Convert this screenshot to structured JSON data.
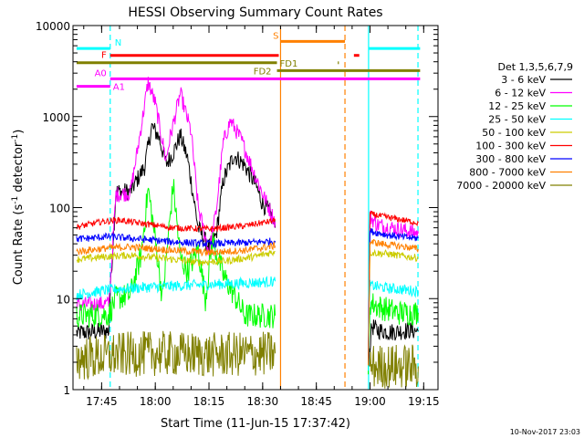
{
  "chart_data": {
    "type": "line",
    "title": "HESSI Observing Summary Count Rates",
    "xlabel": "Start Time (11-Jun-15 17:37:42)",
    "ylabel_main": "Count Rate (s",
    "ylabel_sup1": "-1",
    "ylabel_mid": " detector",
    "ylabel_sup2": "-1",
    "ylabel_end": ")",
    "yscale": "log",
    "xlim": [
      "17:37:42",
      "19:19"
    ],
    "ylim": [
      1,
      10000
    ],
    "x_ticks": [
      "17:45",
      "18:00",
      "18:15",
      "18:30",
      "18:45",
      "19:00",
      "19:15"
    ],
    "y_ticks": [
      "1",
      "10",
      "100",
      "1000",
      "10000"
    ],
    "legend_title": "Det 1,3,5,6,7,9",
    "legend_position": "right",
    "timestamp": "10-Nov-2017 23:03",
    "series": [
      {
        "name": "3 - 6 keV",
        "color": "#000000",
        "segments": [
          [
            [
              "17:38",
              4.2
            ],
            [
              "17:47",
              4.4
            ],
            [
              "17:47.4",
              12
            ],
            [
              "17:49",
              150
            ],
            [
              "17:53",
              150
            ],
            [
              "17:57",
              280
            ],
            [
              "17:59",
              780
            ],
            [
              "18:01",
              600
            ],
            [
              "18:03",
              300
            ],
            [
              "18:05",
              400
            ],
            [
              "18:07",
              620
            ],
            [
              "18:09",
              350
            ],
            [
              "18:12",
              60
            ],
            [
              "18:15",
              36
            ],
            [
              "18:17",
              50
            ],
            [
              "18:19",
              200
            ],
            [
              "18:22",
              380
            ],
            [
              "18:25",
              290
            ],
            [
              "18:28",
              180
            ],
            [
              "18:30",
              110
            ],
            [
              "18:32",
              90
            ],
            [
              "18:33.5",
              60
            ]
          ],
          [
            [
              "18:59.5",
              1.9
            ],
            [
              "19:00.5",
              5
            ],
            [
              "19:02",
              4.5
            ],
            [
              "19:06",
              4.3
            ],
            [
              "19:11",
              4.5
            ],
            [
              "19:13.5",
              4.4
            ]
          ]
        ]
      },
      {
        "name": "6 - 12 keV",
        "color": "#ff00ff",
        "segments": [
          [
            [
              "17:38",
              8.5
            ],
            [
              "17:47",
              8.8
            ],
            [
              "17:47.4",
              14
            ],
            [
              "17:49",
              140
            ],
            [
              "17:53",
              145
            ],
            [
              "17:55",
              420
            ],
            [
              "17:58",
              2400
            ],
            [
              "18:00",
              1400
            ],
            [
              "18:03",
              330
            ],
            [
              "18:04",
              560
            ],
            [
              "18:07",
              1800
            ],
            [
              "18:10",
              680
            ],
            [
              "18:12",
              100
            ],
            [
              "18:15",
              32
            ],
            [
              "18:17",
              90
            ],
            [
              "18:19",
              520
            ],
            [
              "18:21",
              900
            ],
            [
              "18:24",
              560
            ],
            [
              "18:28",
              220
            ],
            [
              "18:31",
              115
            ],
            [
              "18:33.5",
              70
            ]
          ],
          [
            [
              "18:59.5",
              2
            ],
            [
              "19:00",
              80
            ],
            [
              "19:02",
              65
            ],
            [
              "19:06",
              60
            ],
            [
              "19:11",
              55
            ],
            [
              "19:13.5",
              52
            ]
          ]
        ]
      },
      {
        "name": "12 - 25 keV",
        "color": "#00ff00",
        "segments": [
          [
            [
              "17:38",
              6.5
            ],
            [
              "17:47",
              6.7
            ],
            [
              "17:49",
              10
            ],
            [
              "17:53",
              11
            ],
            [
              "17:56",
              30
            ],
            [
              "17:58",
              160
            ],
            [
              "18:00",
              45
            ],
            [
              "18:02",
              10
            ],
            [
              "18:05",
              180
            ],
            [
              "18:07",
              28
            ],
            [
              "18:09",
              20
            ],
            [
              "18:12",
              35
            ],
            [
              "18:14",
              10
            ],
            [
              "18:16",
              45
            ],
            [
              "18:19",
              18
            ],
            [
              "18:22",
              11
            ],
            [
              "18:25",
              6.5
            ],
            [
              "18:28",
              6.5
            ],
            [
              "18:33.5",
              6.5
            ]
          ],
          [
            [
              "18:59.5",
              1.3
            ],
            [
              "19:00",
              9
            ],
            [
              "19:03",
              8
            ],
            [
              "19:08",
              7
            ],
            [
              "19:13.5",
              7
            ]
          ]
        ]
      },
      {
        "name": "25 - 50 keV",
        "color": "#00ffff",
        "segments": [
          [
            [
              "17:38",
              11
            ],
            [
              "17:47",
              12.5
            ],
            [
              "17:53",
              13
            ],
            [
              "18:00",
              13.5
            ],
            [
              "18:10",
              14
            ],
            [
              "18:20",
              14.5
            ],
            [
              "18:28",
              15
            ],
            [
              "18:33.5",
              15.5
            ]
          ],
          [
            [
              "18:59.5",
              1.5
            ],
            [
              "19:00",
              14
            ],
            [
              "19:05",
              13
            ],
            [
              "19:10",
              12.5
            ],
            [
              "19:13.5",
              12
            ]
          ]
        ]
      },
      {
        "name": "50 - 100 keV",
        "color": "#cccc00",
        "segments": [
          [
            [
              "17:38",
              27
            ],
            [
              "17:47",
              29
            ],
            [
              "17:53",
              30
            ],
            [
              "18:05",
              27
            ],
            [
              "18:12",
              25
            ],
            [
              "18:20",
              26
            ],
            [
              "18:28",
              29
            ],
            [
              "18:33.5",
              33
            ]
          ],
          [
            [
              "18:59.5",
              2
            ],
            [
              "19:00",
              32
            ],
            [
              "19:05",
              31
            ],
            [
              "19:10",
              29
            ],
            [
              "19:13.5",
              28
            ]
          ]
        ]
      },
      {
        "name": "100 - 300 keV",
        "color": "#ff0000",
        "segments": [
          [
            [
              "17:38",
              61
            ],
            [
              "17:45",
              70
            ],
            [
              "17:50",
              73
            ],
            [
              "17:55",
              68
            ],
            [
              "18:05",
              60
            ],
            [
              "18:15",
              58
            ],
            [
              "18:25",
              63
            ],
            [
              "18:33.5",
              72
            ]
          ],
          [
            [
              "18:59.5",
              2
            ],
            [
              "19:00",
              85
            ],
            [
              "19:05",
              78
            ],
            [
              "19:10",
              72
            ],
            [
              "19:13.5",
              68
            ]
          ]
        ]
      },
      {
        "name": "300 - 800 keV",
        "color": "#0000ff",
        "segments": [
          [
            [
              "17:38",
              45
            ],
            [
              "17:47",
              48
            ],
            [
              "17:53",
              46
            ],
            [
              "18:05",
              42
            ],
            [
              "18:15",
              40
            ],
            [
              "18:25",
              41
            ],
            [
              "18:33.5",
              43
            ]
          ],
          [
            [
              "18:59.5",
              2
            ],
            [
              "19:00",
              55
            ],
            [
              "19:05",
              50
            ],
            [
              "19:10",
              47
            ],
            [
              "19:13.5",
              46
            ]
          ]
        ]
      },
      {
        "name": "800 - 7000 keV",
        "color": "#ff8000",
        "segments": [
          [
            [
              "17:38",
              33
            ],
            [
              "17:47",
              36
            ],
            [
              "17:53",
              37
            ],
            [
              "18:05",
              34
            ],
            [
              "18:15",
              32
            ],
            [
              "18:25",
              34
            ],
            [
              "18:33.5",
              38
            ]
          ],
          [
            [
              "18:59.5",
              2
            ],
            [
              "19:00",
              42
            ],
            [
              "19:05",
              39
            ],
            [
              "19:10",
              37
            ],
            [
              "19:13.5",
              35
            ]
          ]
        ]
      },
      {
        "name": "7000 - 20000 keV",
        "color": "#808000",
        "segments": [
          [
            [
              "17:38",
              2.2
            ],
            [
              "17:47",
              2.3
            ],
            [
              "17:48",
              2.4
            ],
            [
              "18:00",
              2.5
            ],
            [
              "18:15",
              2.4
            ],
            [
              "18:33.5",
              2.5
            ]
          ],
          [
            [
              "19:00",
              1.8
            ],
            [
              "19:13.5",
              1.8
            ]
          ]
        ]
      }
    ],
    "flag_bars": [
      {
        "label": "N",
        "color": "#00ffff",
        "y": 5600,
        "spans": [
          [
            "17:38",
            "17:47.4"
          ],
          [
            "18:59.5",
            "19:14"
          ]
        ]
      },
      {
        "label": "S",
        "color": "#ff8000",
        "y": 6700,
        "spans": [
          [
            "18:35",
            "18:53"
          ]
        ]
      },
      {
        "label": "F",
        "color": "#ff0000",
        "y": 4700,
        "spans": [
          [
            "17:47.4",
            "18:34.5"
          ],
          [
            "18:55.5",
            "18:57"
          ]
        ]
      },
      {
        "label": "FD1",
        "color": "#808000",
        "y": 3900,
        "spans": [
          [
            "17:38",
            "18:34"
          ],
          [
            "18:51",
            "18:51.3"
          ]
        ]
      },
      {
        "label": "FD2",
        "color": "#808000",
        "y": 3200,
        "spans": [
          [
            "18:34",
            "19:14"
          ]
        ]
      },
      {
        "label": "A0",
        "color": "#ff00ff",
        "y": 2600,
        "spans": [
          [
            "17:47.4",
            "19:14"
          ]
        ]
      },
      {
        "label": "A1",
        "color": "#ff00ff",
        "y": 2150,
        "spans": [
          [
            "17:38",
            "17:47.4"
          ]
        ]
      }
    ],
    "vertical_lines": [
      {
        "x": "17:47.4",
        "color": "#00ffff",
        "style": "dashed"
      },
      {
        "x": "18:59.6",
        "color": "#00ffff",
        "style": "solid"
      },
      {
        "x": "19:13.4",
        "color": "#00ffff",
        "style": "dashed"
      },
      {
        "x": "18:35",
        "color": "#ff8000",
        "style": "solid"
      },
      {
        "x": "18:53",
        "color": "#ff8000",
        "style": "dashed"
      }
    ]
  }
}
